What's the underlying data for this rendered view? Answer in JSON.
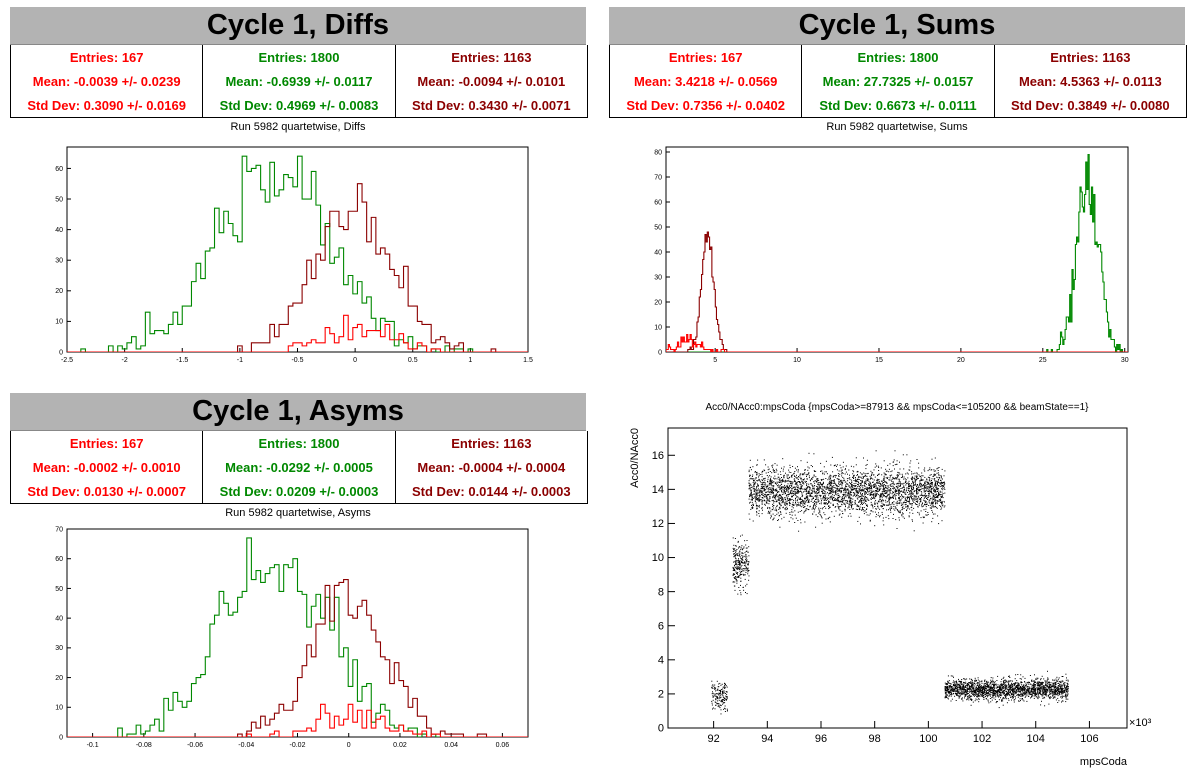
{
  "colors": {
    "red": "#ff0000",
    "green": "#008800",
    "darkred": "#8b0000"
  },
  "panels": {
    "diffs": {
      "title": "Cycle 1, Diffs",
      "subtitle": "Run 5982 quartetwise, Diffs",
      "stats": [
        {
          "entries": "Entries: 167",
          "mean": "Mean: -0.0039 +/- 0.0239",
          "std": "Std Dev: 0.3090 +/- 0.0169"
        },
        {
          "entries": "Entries: 1800",
          "mean": "Mean: -0.6939 +/- 0.0117",
          "std": "Std Dev: 0.4969 +/- 0.0083"
        },
        {
          "entries": "Entries: 1163",
          "mean": "Mean: -0.0094 +/- 0.0101",
          "std": "Std Dev: 0.3430 +/- 0.0071"
        }
      ]
    },
    "sums": {
      "title": "Cycle 1, Sums",
      "subtitle": "Run 5982 quartetwise, Sums",
      "stats": [
        {
          "entries": "Entries: 167",
          "mean": "Mean: 3.4218 +/- 0.0569",
          "std": "Std Dev: 0.7356 +/- 0.0402"
        },
        {
          "entries": "Entries: 1800",
          "mean": "Mean: 27.7325 +/- 0.0157",
          "std": "Std Dev: 0.6673 +/- 0.0111"
        },
        {
          "entries": "Entries: 1163",
          "mean": "Mean: 4.5363 +/- 0.0113",
          "std": "Std Dev: 0.3849 +/- 0.0080"
        }
      ]
    },
    "asyms": {
      "title": "Cycle 1, Asyms",
      "subtitle": "Run 5982 quartetwise, Asyms",
      "stats": [
        {
          "entries": "Entries: 167",
          "mean": "Mean: -0.0002 +/- 0.0010",
          "std": "Std Dev: 0.0130 +/- 0.0007"
        },
        {
          "entries": "Entries: 1800",
          "mean": "Mean: -0.0292 +/- 0.0005",
          "std": "Std Dev: 0.0209 +/- 0.0003"
        },
        {
          "entries": "Entries: 1163",
          "mean": "Mean: -0.0004 +/- 0.0004",
          "std": "Std Dev: 0.0144 +/- 0.0003"
        }
      ]
    },
    "scatter": {
      "title": "Acc0/NAcc0:mpsCoda {mpsCoda>=87913 && mpsCoda<=105200 && beamState==1}",
      "xlabel": "mpsCoda",
      "ylabel": "Acc0/NAcc0",
      "exponent": "×10³"
    }
  },
  "chart_data": [
    {
      "type": "bar",
      "id": "diffs",
      "xlim": [
        -2.5,
        1.5
      ],
      "ylim": [
        0,
        67
      ],
      "xticks": [
        -2.5,
        -2,
        -1.5,
        -1,
        -0.5,
        0,
        0.5,
        1,
        1.5
      ],
      "xtick_labels": [
        "-2.5",
        "-2",
        "-1.5",
        "-1",
        "-0.5",
        "0",
        "0.5",
        "1",
        "1.5"
      ],
      "yticks": [
        0,
        10,
        20,
        30,
        40,
        50,
        60
      ],
      "ytick_labels": [
        "0",
        "10",
        "20",
        "30",
        "40",
        "50",
        "60"
      ],
      "series": [
        {
          "color": "green",
          "mean": -0.6939,
          "std": 0.4969,
          "entries": 1800,
          "binwidth": 0.04,
          "peak": 64
        },
        {
          "color": "darkred",
          "mean": -0.0094,
          "std": 0.343,
          "entries": 1163,
          "binwidth": 0.04,
          "peak": 55
        },
        {
          "color": "red",
          "mean": -0.0039,
          "std": 0.309,
          "entries": 167,
          "binwidth": 0.04,
          "peak": 12
        }
      ]
    },
    {
      "type": "bar",
      "id": "sums",
      "xlim": [
        2,
        30.2
      ],
      "ylim": [
        0,
        82
      ],
      "xticks": [
        5,
        10,
        15,
        20,
        25,
        30
      ],
      "xtick_labels": [
        "5",
        "10",
        "15",
        "20",
        "25",
        "30"
      ],
      "yticks": [
        0,
        10,
        20,
        30,
        40,
        50,
        60,
        70,
        80
      ],
      "ytick_labels": [
        "0",
        "10",
        "20",
        "30",
        "40",
        "50",
        "60",
        "70",
        "80"
      ],
      "series": [
        {
          "color": "green",
          "mean": 27.7325,
          "std": 0.6673,
          "entries": 1800,
          "binwidth": 0.07,
          "peak": 79
        },
        {
          "color": "darkred",
          "mean": 4.5363,
          "std": 0.3849,
          "entries": 1163,
          "binwidth": 0.07,
          "peak": 48
        },
        {
          "color": "red",
          "mean": 3.4218,
          "std": 0.7356,
          "entries": 167,
          "binwidth": 0.07,
          "peak": 7
        }
      ]
    },
    {
      "type": "bar",
      "id": "asyms",
      "xlim": [
        -0.11,
        0.07
      ],
      "ylim": [
        0,
        70
      ],
      "xticks": [
        -0.1,
        -0.08,
        -0.06,
        -0.04,
        -0.02,
        0,
        0.02,
        0.04,
        0.06
      ],
      "xtick_labels": [
        "-0.1",
        "-0.08",
        "-0.06",
        "-0.04",
        "-0.02",
        "0",
        "0.02",
        "0.04",
        "0.06"
      ],
      "yticks": [
        0,
        10,
        20,
        30,
        40,
        50,
        60,
        70
      ],
      "ytick_labels": [
        "0",
        "10",
        "20",
        "30",
        "40",
        "50",
        "60",
        "70"
      ],
      "series": [
        {
          "color": "green",
          "mean": -0.0292,
          "std": 0.0209,
          "entries": 1800,
          "binwidth": 0.0018,
          "peak": 67
        },
        {
          "color": "darkred",
          "mean": -0.0004,
          "std": 0.0144,
          "entries": 1163,
          "binwidth": 0.0018,
          "peak": 53
        },
        {
          "color": "red",
          "mean": -0.0002,
          "std": 0.013,
          "entries": 167,
          "binwidth": 0.0018,
          "peak": 11
        }
      ]
    },
    {
      "type": "scatter",
      "id": "scatter",
      "xlim": [
        90.3,
        107.4
      ],
      "ylim": [
        0,
        17.6
      ],
      "xticks": [
        92,
        94,
        96,
        98,
        100,
        102,
        104,
        106
      ],
      "xtick_labels": [
        "92",
        "94",
        "96",
        "98",
        "100",
        "102",
        "104",
        "106"
      ],
      "yticks": [
        0,
        2,
        4,
        6,
        8,
        10,
        12,
        14,
        16
      ],
      "ytick_labels": [
        "0",
        "2",
        "4",
        "6",
        "8",
        "10",
        "12",
        "14",
        "16"
      ],
      "clusters": [
        {
          "x": [
            91.9,
            92.5
          ],
          "y_center": 1.9,
          "y_spread": 0.5,
          "count": 160
        },
        {
          "x": [
            92.7,
            93.3
          ],
          "y_center": 9.6,
          "y_spread": 0.7,
          "count": 260
        },
        {
          "x": [
            93.3,
            100.6
          ],
          "y_center": 13.9,
          "y_spread": 0.7,
          "count": 3200
        },
        {
          "x": [
            100.6,
            105.2
          ],
          "y_center": 2.3,
          "y_spread": 0.3,
          "count": 2000
        }
      ]
    }
  ]
}
